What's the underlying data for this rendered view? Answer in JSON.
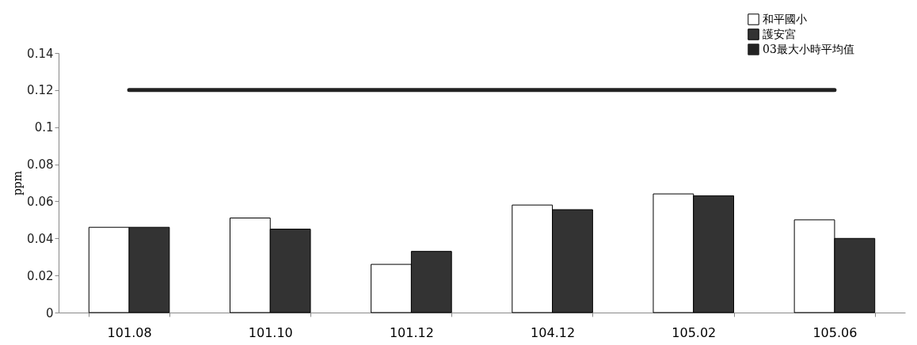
{
  "chart_data": {
    "type": "bar",
    "ylabel": "ppm",
    "categories": [
      "101.08",
      "101.10",
      "101.12",
      "104.12",
      "105.02",
      "105.06"
    ],
    "series": [
      {
        "name": "和平國小",
        "color": "#ffffff",
        "values": [
          0.046,
          0.051,
          0.026,
          0.058,
          0.064,
          0.05
        ]
      },
      {
        "name": "護安宮",
        "color": "#333333",
        "values": [
          0.046,
          0.045,
          0.033,
          0.0555,
          0.063,
          0.04
        ]
      },
      {
        "name": "03最大小時平均值",
        "type": "line",
        "color": "#222222",
        "values": [
          0.12,
          0.12,
          0.12,
          0.12,
          0.12,
          0.12
        ]
      }
    ],
    "ylim": [
      0,
      0.14
    ],
    "yticks": [
      0,
      0.02,
      0.04,
      0.06,
      0.08,
      0.1,
      0.12,
      0.14
    ],
    "grid": false,
    "legend": "top right"
  }
}
